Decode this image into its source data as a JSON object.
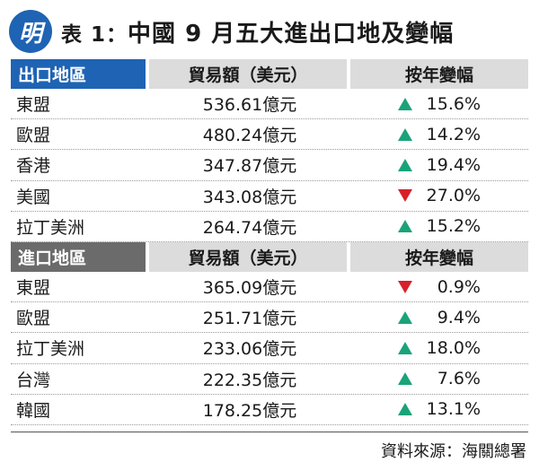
{
  "logo": {
    "char": "明"
  },
  "title": {
    "prefix": "表 1：",
    "main": "中國 9 月五大進出口地及變幅"
  },
  "export_section": {
    "header": {
      "region": "出口地區",
      "value": "貿易額（美元）",
      "change": "按年變幅"
    },
    "rows": [
      {
        "region": "東盟",
        "value": "536.61億元",
        "direction": "up",
        "change": "15.6%"
      },
      {
        "region": "歐盟",
        "value": "480.24億元",
        "direction": "up",
        "change": "14.2%"
      },
      {
        "region": "香港",
        "value": "347.87億元",
        "direction": "up",
        "change": "19.4%"
      },
      {
        "region": "美國",
        "value": "343.08億元",
        "direction": "down",
        "change": "27.0%"
      },
      {
        "region": "拉丁美洲",
        "value": "264.74億元",
        "direction": "up",
        "change": "15.2%"
      }
    ]
  },
  "import_section": {
    "header": {
      "region": "進口地區",
      "value": "貿易額（美元）",
      "change": "按年變幅"
    },
    "rows": [
      {
        "region": "東盟",
        "value": "365.09億元",
        "direction": "down",
        "change": "0.9%"
      },
      {
        "region": "歐盟",
        "value": "251.71億元",
        "direction": "up",
        "change": "9.4%"
      },
      {
        "region": "拉丁美洲",
        "value": "233.06億元",
        "direction": "up",
        "change": "18.0%"
      },
      {
        "region": "台灣",
        "value": "222.35億元",
        "direction": "up",
        "change": "7.6%"
      },
      {
        "region": "韓國",
        "value": "178.25億元",
        "direction": "up",
        "change": "13.1%"
      }
    ]
  },
  "source": "資料來源：海關總署",
  "colors": {
    "up": "#1aa37a",
    "down": "#d8202a",
    "export_header": "#1f63b4",
    "import_header": "#6b6b6b"
  }
}
